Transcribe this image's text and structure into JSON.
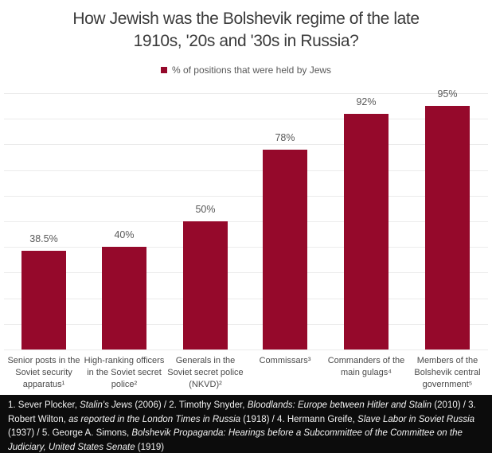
{
  "chart_data": {
    "type": "bar",
    "title": "How Jewish was the Bolshevik regime of the late\n1910s, '20s and '30s in Russia?",
    "legend": {
      "label": "% of positions that were held by Jews",
      "position": "top"
    },
    "categories": [
      "Senior posts in the Soviet security apparatus¹",
      "High-ranking officers in the Soviet secret police²",
      "Generals in the Soviet secret police (NKVD)²",
      "Commissars³",
      "Commanders of the main gulags⁴",
      "Members of the Bolshevik central government⁵"
    ],
    "values": [
      38.5,
      40,
      50,
      78,
      92,
      95
    ],
    "value_labels": [
      "38.5%",
      "40%",
      "50%",
      "78%",
      "92%",
      "95%"
    ],
    "xlabel": "",
    "ylabel": "",
    "ylim": [
      0,
      100
    ],
    "gridline_step": 10,
    "grid": true,
    "bar_color": "#95092B",
    "gridline_color": "#ebebeb"
  },
  "colors": {
    "bar": "#95092B",
    "title_text": "#3b3b3b",
    "label_text": "#595959",
    "footer_bg": "#0c0c0c",
    "footer_text": "#f2f2f2"
  },
  "footer": {
    "segments": [
      {
        "text": "1. Sever Plocker, ",
        "italic": false
      },
      {
        "text": "Stalin's Jews",
        "italic": true
      },
      {
        "text": " (2006) / 2. Timothy Snyder, ",
        "italic": false
      },
      {
        "text": "Bloodlands: Europe between Hitler and Stalin",
        "italic": true
      },
      {
        "text": " (2010) / 3. Robert Wilton, ",
        "italic": false
      },
      {
        "text": "as reported in the London Times in Russia",
        "italic": true
      },
      {
        "text": " (1918) / 4. Hermann Greife, ",
        "italic": false
      },
      {
        "text": "Slave Labor in Soviet Russia",
        "italic": true
      },
      {
        "text": " (1937) / 5. George A. Simons, ",
        "italic": false
      },
      {
        "text": "Bolshevik Propaganda: Hearings before a Subcommittee of the Committee on the Judiciary, United States Senate",
        "italic": true
      },
      {
        "text": " (1919)",
        "italic": false
      }
    ]
  }
}
